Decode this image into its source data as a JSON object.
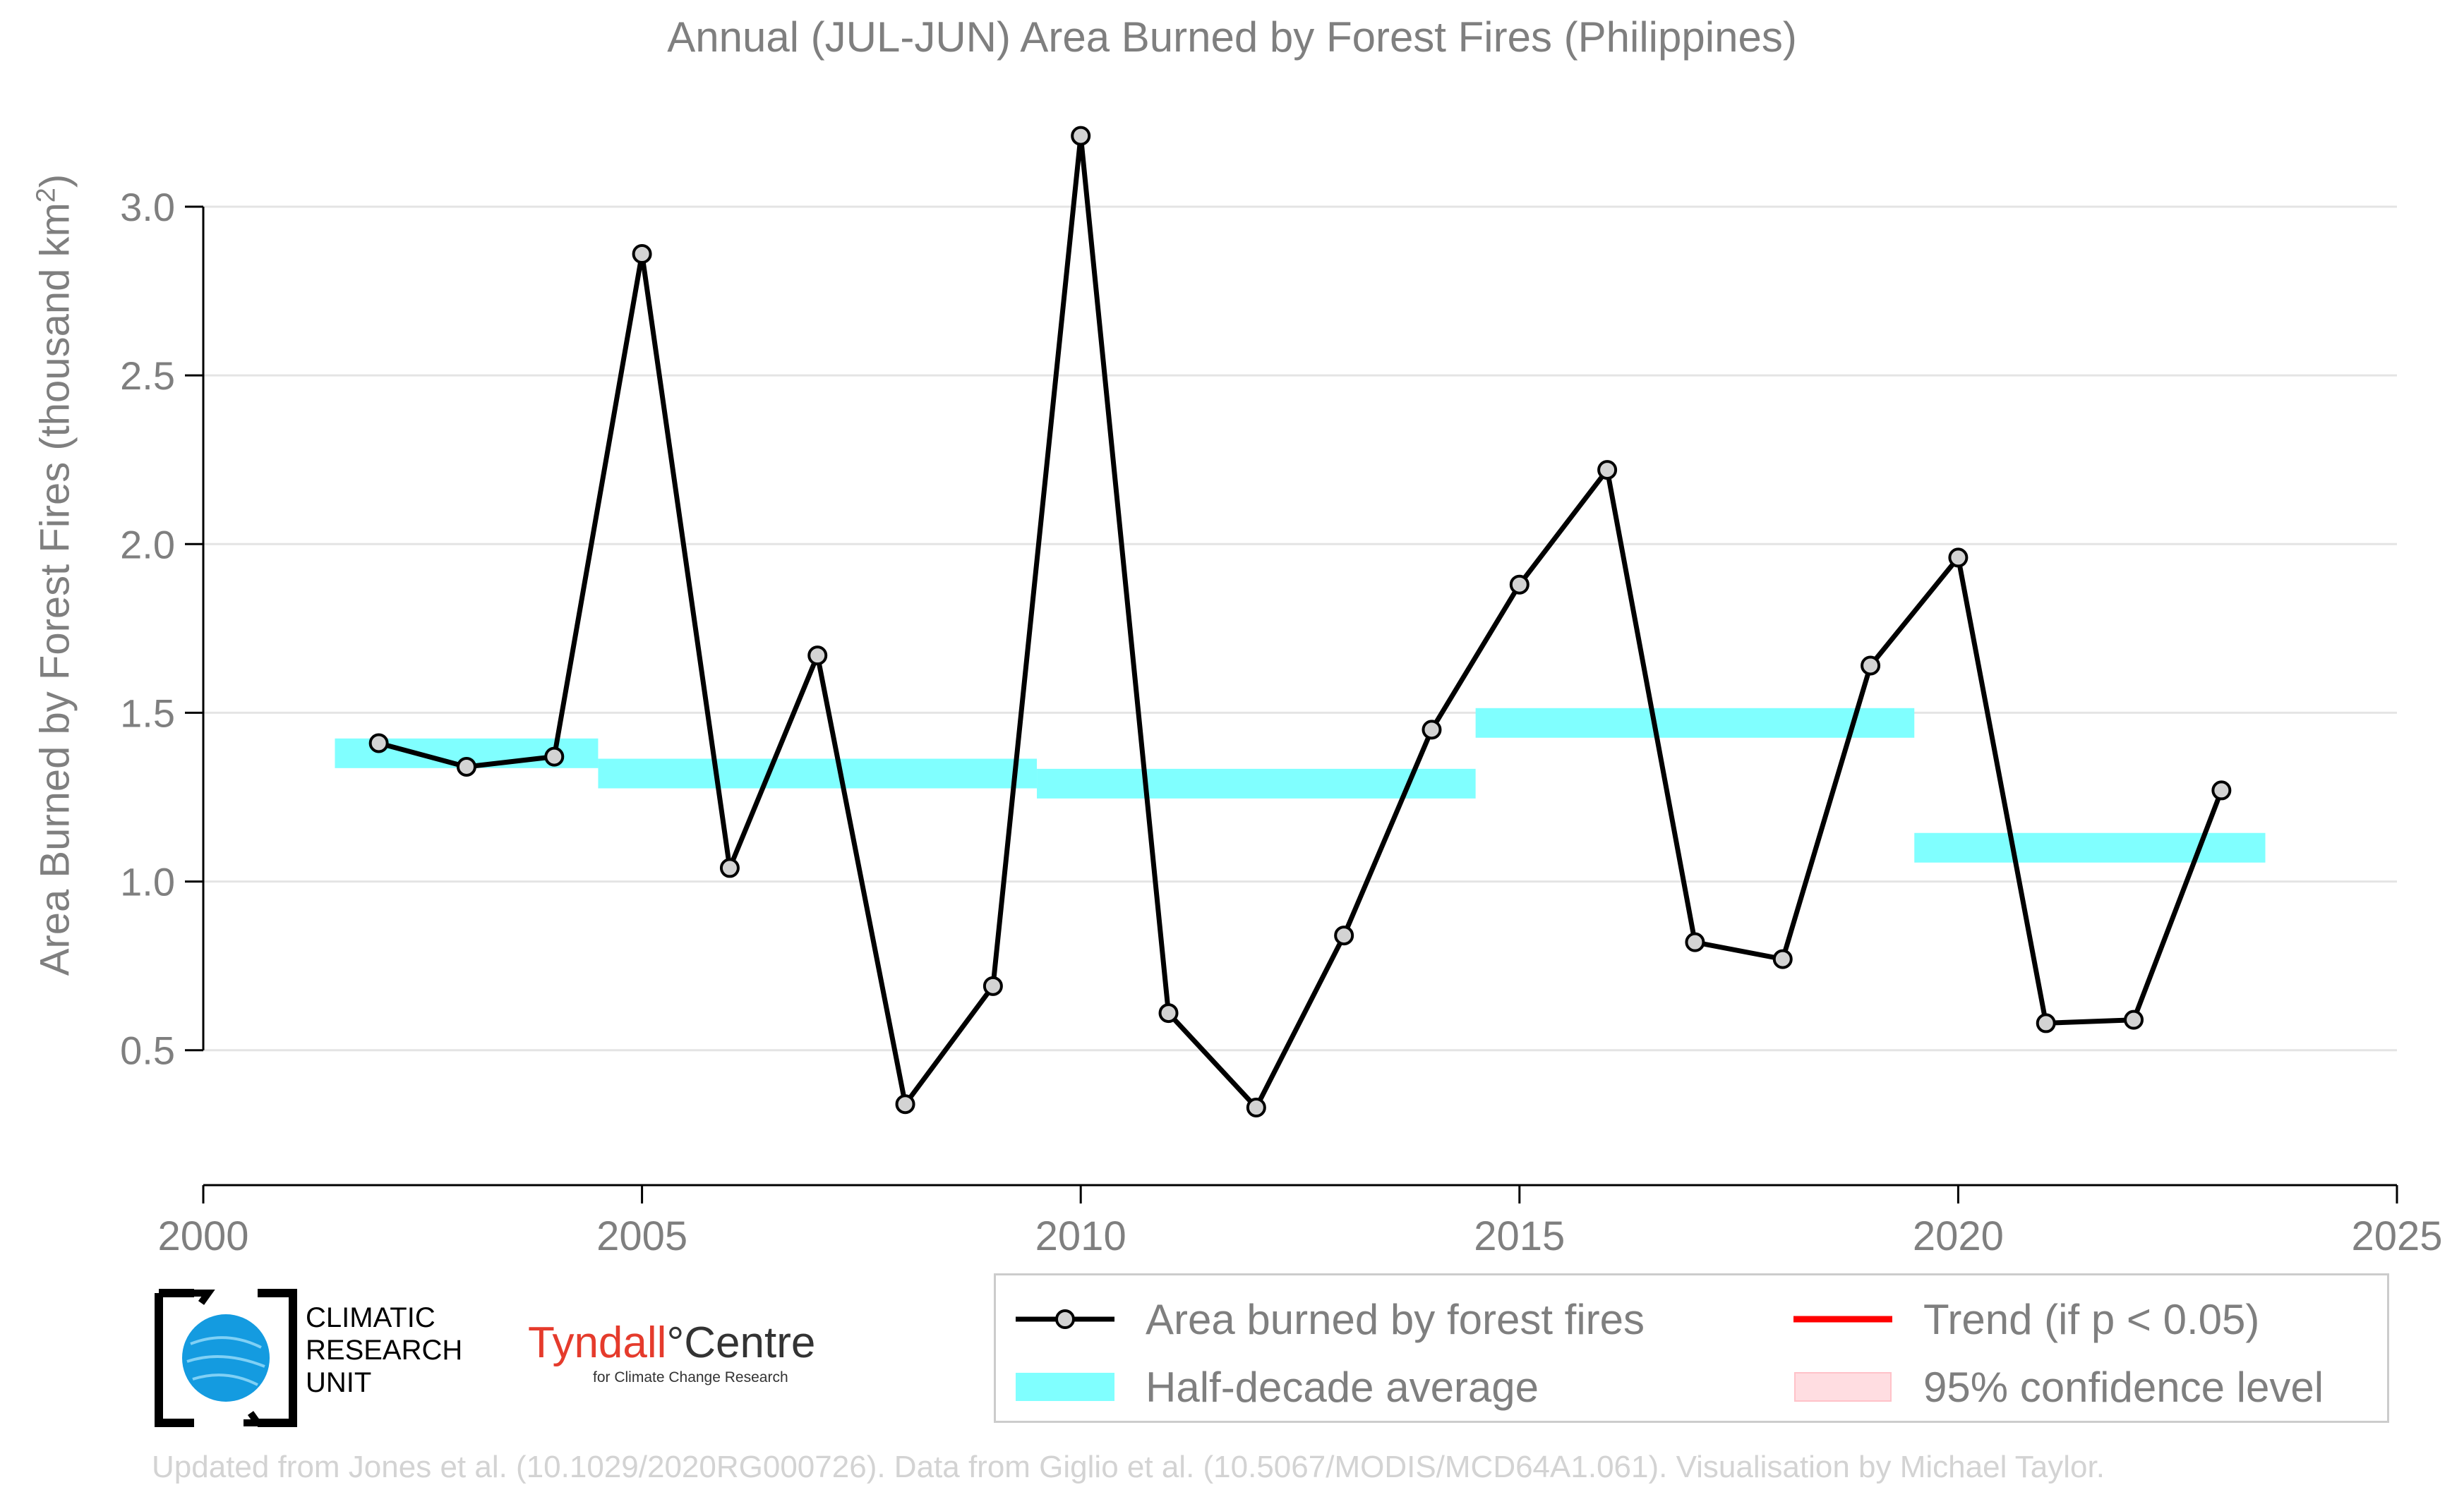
{
  "chart_data": {
    "type": "line",
    "title": "Annual (JUL-JUN) Area Burned by Forest Fires (Philippines)",
    "ylabel_main": "Area Burned by Forest Fires (thousand km",
    "ylabel_sup": "2",
    "ylabel_end": ")",
    "xlim": [
      2000,
      2025
    ],
    "ylim": [
      0.1,
      3.32
    ],
    "x_ticks": [
      2000,
      2005,
      2010,
      2015,
      2020,
      2025
    ],
    "y_ticks": [
      0.5,
      1.0,
      1.5,
      2.0,
      2.5,
      3.0
    ],
    "y_tick_labels": [
      "0.5",
      "1.0",
      "1.5",
      "2.0",
      "2.5",
      "3.0"
    ],
    "grid": "horizontal",
    "legend_position": "bottom-right",
    "series": [
      {
        "name": "Area burned by forest fires",
        "color": "#000000",
        "marker_fill": "#d3d3d3",
        "x": [
          2002,
          2003,
          2004,
          2005,
          2006,
          2007,
          2008,
          2009,
          2010,
          2011,
          2012,
          2013,
          2014,
          2015,
          2016,
          2017,
          2018,
          2019,
          2020,
          2021,
          2022,
          2023
        ],
        "y": [
          1.41,
          1.34,
          1.37,
          2.86,
          1.04,
          1.67,
          0.34,
          0.69,
          3.21,
          0.61,
          0.33,
          0.84,
          1.45,
          1.88,
          2.22,
          0.82,
          0.77,
          1.64,
          1.96,
          0.58,
          0.59,
          1.27
        ]
      }
    ],
    "half_decade_average": {
      "name": "Half-decade average",
      "color": "#80ffff",
      "segments": [
        {
          "x_start": 2001.5,
          "x_end": 2004.5,
          "y": 1.38
        },
        {
          "x_start": 2004.5,
          "x_end": 2009.5,
          "y": 1.32
        },
        {
          "x_start": 2009.5,
          "x_end": 2014.5,
          "y": 1.29
        },
        {
          "x_start": 2014.5,
          "x_end": 2019.5,
          "y": 1.47
        },
        {
          "x_start": 2019.5,
          "x_end": 2023.5,
          "y": 1.1
        }
      ]
    }
  },
  "legend": {
    "items": [
      {
        "label": "Area burned by forest fires",
        "color": "#000000"
      },
      {
        "label": "Trend (if p < 0.05)",
        "color": "#ff0000"
      },
      {
        "label": "Half-decade average",
        "color": "#80ffff"
      },
      {
        "label": "95% confidence level",
        "color": "#ffdde1"
      }
    ]
  },
  "logos": {
    "cru_lines": [
      "CLIMATIC",
      "RESEARCH",
      "UNIT"
    ],
    "tyndall_name": "Tyndall",
    "tyndall_degree": "°",
    "tyndall_centre": "Centre",
    "tyndall_sub": "for Climate Change Research"
  },
  "credit": "Updated from Jones et al. (10.1029/2020RG000726). Data from Giglio et al. (10.5067/MODIS/MCD64A1.061). Visualisation by Michael Taylor."
}
